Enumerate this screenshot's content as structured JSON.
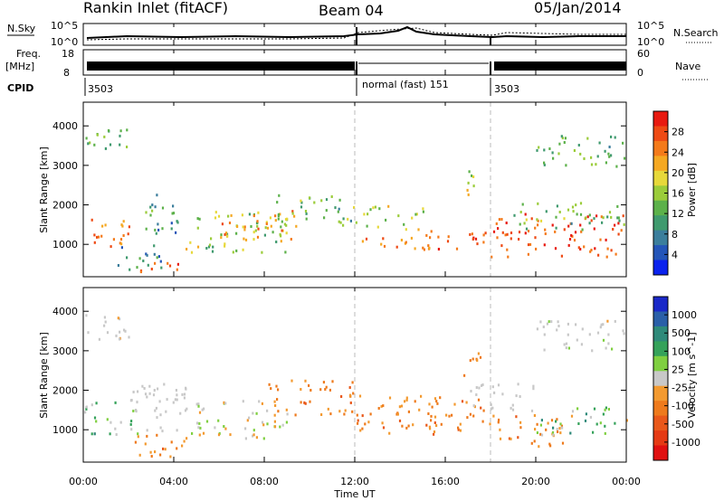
{
  "header": {
    "station": "Rankin Inlet (fitACF)",
    "beam": "Beam 04",
    "date": "05/Jan/2014"
  },
  "strip_panels": {
    "nsky_label": "N.Sky",
    "nsky_ticks": [
      "10^5",
      "10^0"
    ],
    "nsearch_label": "N.Search",
    "nsearch_ticks": [
      "10^5",
      "10^0"
    ],
    "freq_label": "Freq.",
    "freq_unit": "[MHz]",
    "freq_ticks": [
      "18",
      "8"
    ],
    "nave_label": "Nave",
    "nave_ticks": [
      "60",
      "0"
    ],
    "cpid_label": "CPID",
    "cpid_segments": [
      {
        "label": "3503",
        "start_hour": 0
      },
      {
        "label": "normal (fast) 151",
        "start_hour": 12
      },
      {
        "label": "3503",
        "start_hour": 18
      }
    ]
  },
  "colors": {
    "power_scale": [
      "#0a22ee",
      "#2455b8",
      "#3b7e9c",
      "#3f9a6e",
      "#5cb14a",
      "#9bcc3a",
      "#e7d83a",
      "#f5a822",
      "#f47a1a",
      "#ee4a14",
      "#e81a10"
    ],
    "velocity_scale": [
      "#1a28c8",
      "#2a5fa8",
      "#2f8a7a",
      "#35a25a",
      "#7fcf40",
      "#c8c8c8",
      "#f39a30",
      "#ee7a1c",
      "#e9581a",
      "#e53a14",
      "#e01010"
    ],
    "cpid_changes_line": "#bbbbbb"
  },
  "chart_data": [
    {
      "type": "heatmap",
      "title": "",
      "xlabel": "",
      "ylabel": "Slant Range [km]",
      "x_unit": "hour UT",
      "xlim": [
        0,
        24
      ],
      "ylim": [
        180,
        4600
      ],
      "yticks": [
        "1000",
        "2000",
        "3000",
        "4000"
      ],
      "colorbar": {
        "label": "Power [dB]",
        "ticks": [
          "4",
          "8",
          "12",
          "16",
          "20",
          "24",
          "28"
        ],
        "range": [
          0,
          30
        ]
      },
      "scatter_regions": [
        {
          "x": [
            0,
            2
          ],
          "y": [
            900,
            1750
          ],
          "value_range": [
            18,
            28
          ]
        },
        {
          "x": [
            1.5,
            3.5
          ],
          "y": [
            300,
            1000
          ],
          "value_range": [
            4,
            14
          ]
        },
        {
          "x": [
            2.5,
            4.5
          ],
          "y": [
            250,
            600
          ],
          "value_range": [
            20,
            28
          ]
        },
        {
          "x": [
            2.5,
            4.5
          ],
          "y": [
            1300,
            2300
          ],
          "value_range": [
            4,
            14
          ]
        },
        {
          "x": [
            4.5,
            9
          ],
          "y": [
            800,
            1900
          ],
          "value_range": [
            8,
            20
          ]
        },
        {
          "x": [
            6,
            9.5
          ],
          "y": [
            1100,
            1900
          ],
          "value_range": [
            18,
            26
          ]
        },
        {
          "x": [
            8.5,
            12
          ],
          "y": [
            1500,
            2300
          ],
          "value_range": [
            8,
            18
          ]
        },
        {
          "x": [
            12,
            15
          ],
          "y": [
            1400,
            2000
          ],
          "value_range": [
            10,
            20
          ]
        },
        {
          "x": [
            12,
            15.5
          ],
          "y": [
            900,
            1300
          ],
          "value_range": [
            18,
            26
          ]
        },
        {
          "x": [
            15,
            18
          ],
          "y": [
            900,
            1400
          ],
          "value_range": [
            20,
            28
          ]
        },
        {
          "x": [
            16.8,
            17.6
          ],
          "y": [
            2200,
            3000
          ],
          "value_range": [
            12,
            24
          ]
        },
        {
          "x": [
            18,
            24
          ],
          "y": [
            700,
            1800
          ],
          "value_range": [
            22,
            30
          ]
        },
        {
          "x": [
            19,
            24
          ],
          "y": [
            1400,
            2100
          ],
          "value_range": [
            8,
            18
          ]
        },
        {
          "x": [
            0,
            2
          ],
          "y": [
            3300,
            4000
          ],
          "value_range": [
            8,
            16
          ]
        },
        {
          "x": [
            20,
            24
          ],
          "y": [
            3000,
            3800
          ],
          "value_range": [
            8,
            16
          ]
        }
      ]
    },
    {
      "type": "heatmap",
      "title": "",
      "xlabel": "Time UT",
      "ylabel": "Slant Range [km]",
      "x_unit": "hour UT",
      "xlim": [
        0,
        24
      ],
      "ylim": [
        180,
        4600
      ],
      "xticks": [
        "00:00",
        "04:00",
        "08:00",
        "12:00",
        "16:00",
        "20:00",
        "00:00"
      ],
      "yticks": [
        "1000",
        "2000",
        "3000",
        "4000"
      ],
      "colorbar": {
        "label": "Velocity [m s^-1]",
        "ticks": [
          "1000",
          "500",
          "100",
          "25",
          "-25",
          "-100",
          "-500",
          "-1000"
        ],
        "range": [
          -1000,
          1000
        ]
      },
      "scatter_regions": [
        {
          "x": [
            0,
            2.5
          ],
          "y": [
            900,
            1800
          ],
          "value_range": [
            -100,
            500
          ]
        },
        {
          "x": [
            2,
            4.5
          ],
          "y": [
            300,
            900
          ],
          "value_range": [
            -500,
            -100
          ]
        },
        {
          "x": [
            2,
            5
          ],
          "y": [
            1000,
            2200
          ],
          "value_range": [
            -25,
            25
          ]
        },
        {
          "x": [
            4.5,
            9
          ],
          "y": [
            800,
            1800
          ],
          "value_range": [
            -200,
            200
          ]
        },
        {
          "x": [
            8,
            12
          ],
          "y": [
            1400,
            2300
          ],
          "value_range": [
            -500,
            -100
          ]
        },
        {
          "x": [
            12,
            16
          ],
          "y": [
            900,
            1900
          ],
          "value_range": [
            -500,
            -100
          ]
        },
        {
          "x": [
            15,
            18
          ],
          "y": [
            1000,
            1800
          ],
          "value_range": [
            -500,
            -100
          ]
        },
        {
          "x": [
            16.8,
            17.6
          ],
          "y": [
            2300,
            3100
          ],
          "value_range": [
            -500,
            -100
          ]
        },
        {
          "x": [
            18,
            21.5
          ],
          "y": [
            600,
            1400
          ],
          "value_range": [
            -500,
            -100
          ]
        },
        {
          "x": [
            20,
            24
          ],
          "y": [
            900,
            1600
          ],
          "value_range": [
            -100,
            500
          ]
        },
        {
          "x": [
            17,
            20
          ],
          "y": [
            1500,
            2200
          ],
          "value_range": [
            -25,
            25
          ]
        },
        {
          "x": [
            0,
            2
          ],
          "y": [
            3300,
            4000
          ],
          "value_range": [
            -100,
            100
          ]
        },
        {
          "x": [
            20,
            24
          ],
          "y": [
            3000,
            3800
          ],
          "value_range": [
            -100,
            100
          ]
        }
      ]
    }
  ]
}
